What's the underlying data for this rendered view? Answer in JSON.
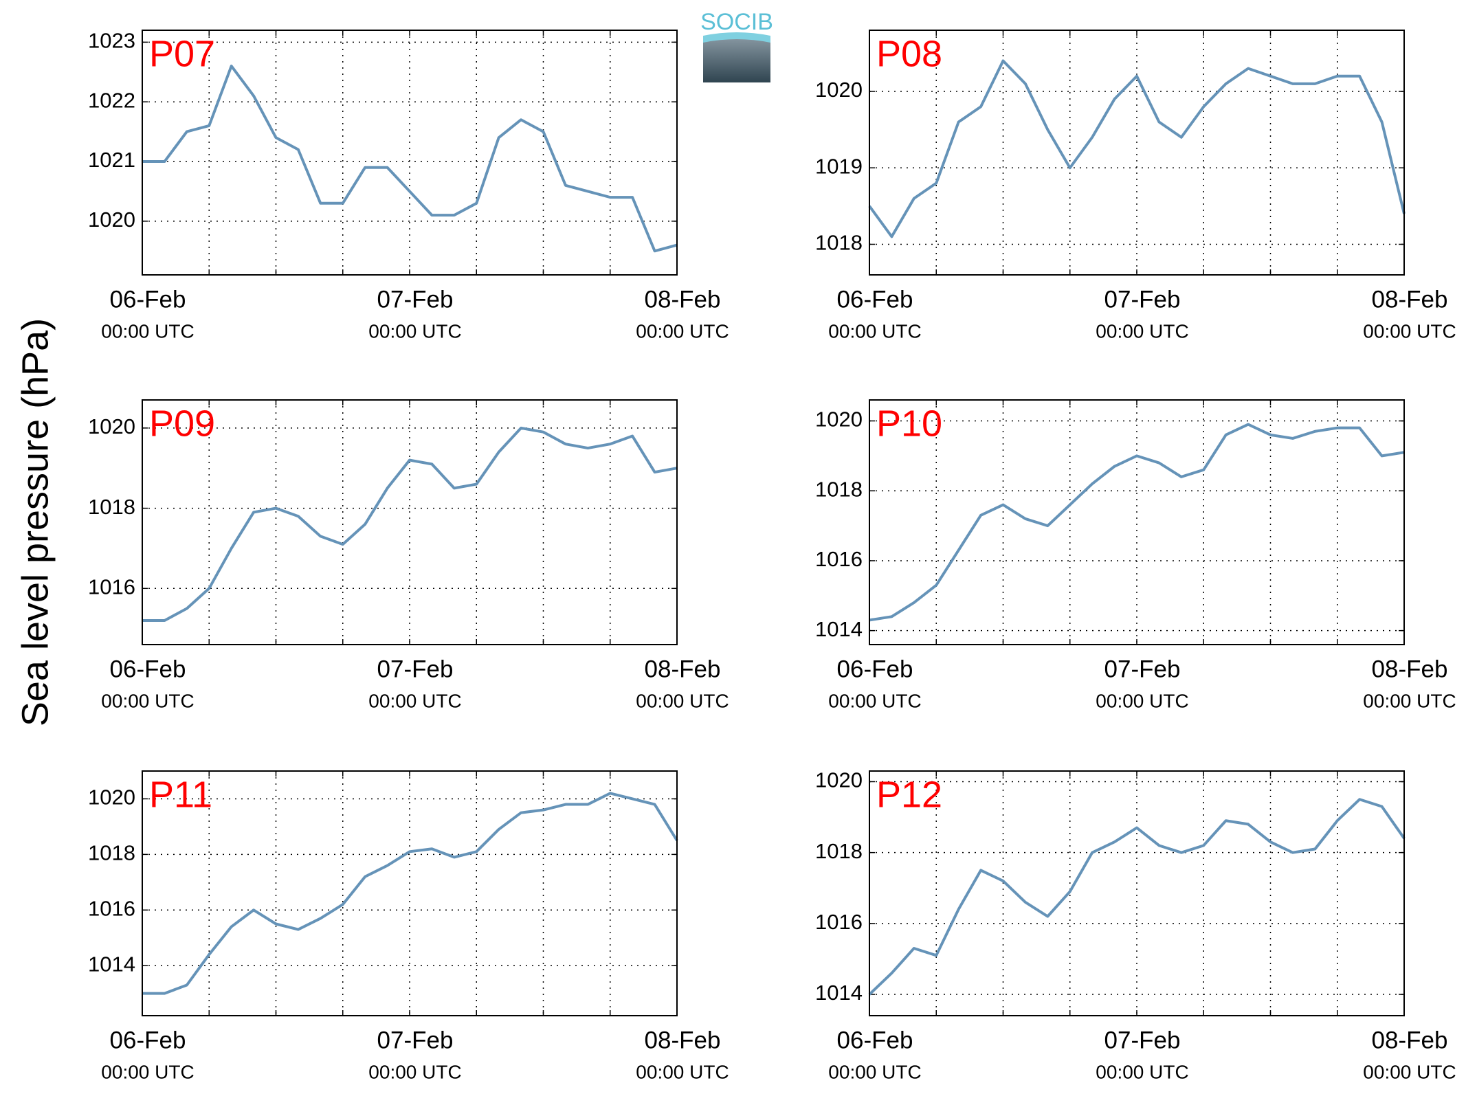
{
  "logo_text": "SOCIB",
  "ylabel": "Sea level pressure (hPa)",
  "chart_data": [
    {
      "type": "line",
      "title": "P07",
      "x": [
        0,
        2,
        4,
        6,
        8,
        10,
        12,
        14,
        16,
        18,
        20,
        22,
        24,
        26,
        28,
        30,
        32,
        34,
        36,
        38,
        40,
        42,
        44,
        46,
        48
      ],
      "series": [
        {
          "name": "P07",
          "color": "#6593b8",
          "values": [
            1021.0,
            1021.0,
            1021.5,
            1021.6,
            1022.6,
            1022.1,
            1021.4,
            1021.2,
            1020.3,
            1020.3,
            1020.9,
            1020.9,
            1020.5,
            1020.1,
            1020.1,
            1020.3,
            1021.4,
            1021.7,
            1021.5,
            1020.6,
            1020.5,
            1020.4,
            1020.4,
            1019.5,
            1019.6
          ]
        }
      ],
      "xlim": [
        0,
        48
      ],
      "xticks": [
        {
          "value": 0,
          "label": "06-Feb",
          "sublabel": "00:00 UTC"
        },
        {
          "value": 6,
          "label": null
        },
        {
          "value": 12,
          "label": null
        },
        {
          "value": 18,
          "label": null
        },
        {
          "value": 24,
          "label": "07-Feb",
          "sublabel": "00:00 UTC"
        },
        {
          "value": 30,
          "label": null
        },
        {
          "value": 36,
          "label": null
        },
        {
          "value": 42,
          "label": null
        },
        {
          "value": 48,
          "label": "08-Feb",
          "sublabel": "00:00 UTC"
        }
      ],
      "ylim": [
        1019.1,
        1023.2
      ],
      "yticks": [
        1020,
        1021,
        1022,
        1023
      ],
      "grid": true
    },
    {
      "type": "line",
      "title": "P08",
      "x": [
        0,
        2,
        4,
        6,
        8,
        10,
        12,
        14,
        16,
        18,
        20,
        22,
        24,
        26,
        28,
        30,
        32,
        34,
        36,
        38,
        40,
        42,
        44,
        46,
        48
      ],
      "series": [
        {
          "name": "P08",
          "color": "#6593b8",
          "values": [
            1018.5,
            1018.1,
            1018.6,
            1018.8,
            1019.6,
            1019.8,
            1020.4,
            1020.1,
            1019.5,
            1019.0,
            1019.4,
            1019.9,
            1020.2,
            1019.6,
            1019.4,
            1019.8,
            1020.1,
            1020.3,
            1020.2,
            1020.1,
            1020.1,
            1020.2,
            1020.2,
            1019.6,
            1018.4
          ]
        }
      ],
      "xlim": [
        0,
        48
      ],
      "xticks": [
        {
          "value": 0,
          "label": "06-Feb",
          "sublabel": "00:00 UTC"
        },
        {
          "value": 6,
          "label": null
        },
        {
          "value": 12,
          "label": null
        },
        {
          "value": 18,
          "label": null
        },
        {
          "value": 24,
          "label": "07-Feb",
          "sublabel": "00:00 UTC"
        },
        {
          "value": 30,
          "label": null
        },
        {
          "value": 36,
          "label": null
        },
        {
          "value": 42,
          "label": null
        },
        {
          "value": 48,
          "label": "08-Feb",
          "sublabel": "00:00 UTC"
        }
      ],
      "ylim": [
        1017.6,
        1020.8
      ],
      "yticks": [
        1018,
        1019,
        1020
      ],
      "grid": true
    },
    {
      "type": "line",
      "title": "P09",
      "x": [
        0,
        2,
        4,
        6,
        8,
        10,
        12,
        14,
        16,
        18,
        20,
        22,
        24,
        26,
        28,
        30,
        32,
        34,
        36,
        38,
        40,
        42,
        44,
        46,
        48
      ],
      "series": [
        {
          "name": "P09",
          "color": "#6593b8",
          "values": [
            1015.2,
            1015.2,
            1015.5,
            1016.0,
            1017.0,
            1017.9,
            1018.0,
            1017.8,
            1017.3,
            1017.1,
            1017.6,
            1018.5,
            1019.2,
            1019.1,
            1018.5,
            1018.6,
            1019.4,
            1020.0,
            1019.9,
            1019.6,
            1019.5,
            1019.6,
            1019.8,
            1018.9,
            1019.0
          ]
        }
      ],
      "xlim": [
        0,
        48
      ],
      "xticks": [
        {
          "value": 0,
          "label": "06-Feb",
          "sublabel": "00:00 UTC"
        },
        {
          "value": 6,
          "label": null
        },
        {
          "value": 12,
          "label": null
        },
        {
          "value": 18,
          "label": null
        },
        {
          "value": 24,
          "label": "07-Feb",
          "sublabel": "00:00 UTC"
        },
        {
          "value": 30,
          "label": null
        },
        {
          "value": 36,
          "label": null
        },
        {
          "value": 42,
          "label": null
        },
        {
          "value": 48,
          "label": "08-Feb",
          "sublabel": "00:00 UTC"
        }
      ],
      "ylim": [
        1014.6,
        1020.7
      ],
      "yticks": [
        1016,
        1018,
        1020
      ],
      "grid": true
    },
    {
      "type": "line",
      "title": "P10",
      "x": [
        0,
        2,
        4,
        6,
        8,
        10,
        12,
        14,
        16,
        18,
        20,
        22,
        24,
        26,
        28,
        30,
        32,
        34,
        36,
        38,
        40,
        42,
        44,
        46,
        48
      ],
      "series": [
        {
          "name": "P10",
          "color": "#6593b8",
          "values": [
            1014.3,
            1014.4,
            1014.8,
            1015.3,
            1016.3,
            1017.3,
            1017.6,
            1017.2,
            1017.0,
            1017.6,
            1018.2,
            1018.7,
            1019.0,
            1018.8,
            1018.4,
            1018.6,
            1019.6,
            1019.9,
            1019.6,
            1019.5,
            1019.7,
            1019.8,
            1019.8,
            1019.0,
            1019.1
          ]
        }
      ],
      "xlim": [
        0,
        48
      ],
      "xticks": [
        {
          "value": 0,
          "label": "06-Feb",
          "sublabel": "00:00 UTC"
        },
        {
          "value": 6,
          "label": null
        },
        {
          "value": 12,
          "label": null
        },
        {
          "value": 18,
          "label": null
        },
        {
          "value": 24,
          "label": "07-Feb",
          "sublabel": "00:00 UTC"
        },
        {
          "value": 30,
          "label": null
        },
        {
          "value": 36,
          "label": null
        },
        {
          "value": 42,
          "label": null
        },
        {
          "value": 48,
          "label": "08-Feb",
          "sublabel": "00:00 UTC"
        }
      ],
      "ylim": [
        1013.6,
        1020.6
      ],
      "yticks": [
        1014,
        1016,
        1018,
        1020
      ],
      "grid": true
    },
    {
      "type": "line",
      "title": "P11",
      "x": [
        0,
        2,
        4,
        6,
        8,
        10,
        12,
        14,
        16,
        18,
        20,
        22,
        24,
        26,
        28,
        30,
        32,
        34,
        36,
        38,
        40,
        42,
        44,
        46,
        48
      ],
      "series": [
        {
          "name": "P11",
          "color": "#6593b8",
          "values": [
            1013.0,
            1013.0,
            1013.3,
            1014.4,
            1015.4,
            1016.0,
            1015.5,
            1015.3,
            1015.7,
            1016.2,
            1017.2,
            1017.6,
            1018.1,
            1018.2,
            1017.9,
            1018.1,
            1018.9,
            1019.5,
            1019.6,
            1019.8,
            1019.8,
            1020.2,
            1020.0,
            1019.8,
            1018.5
          ]
        }
      ],
      "xlim": [
        0,
        48
      ],
      "xticks": [
        {
          "value": 0,
          "label": "06-Feb",
          "sublabel": "00:00 UTC"
        },
        {
          "value": 6,
          "label": null
        },
        {
          "value": 12,
          "label": null
        },
        {
          "value": 18,
          "label": null
        },
        {
          "value": 24,
          "label": "07-Feb",
          "sublabel": "00:00 UTC"
        },
        {
          "value": 30,
          "label": null
        },
        {
          "value": 36,
          "label": null
        },
        {
          "value": 42,
          "label": null
        },
        {
          "value": 48,
          "label": "08-Feb",
          "sublabel": "00:00 UTC"
        }
      ],
      "ylim": [
        1012.2,
        1021.0
      ],
      "yticks": [
        1014,
        1016,
        1018,
        1020
      ],
      "grid": true
    },
    {
      "type": "line",
      "title": "P12",
      "x": [
        0,
        2,
        4,
        6,
        8,
        10,
        12,
        14,
        16,
        18,
        20,
        22,
        24,
        26,
        28,
        30,
        32,
        34,
        36,
        38,
        40,
        42,
        44,
        46,
        48
      ],
      "series": [
        {
          "name": "P12",
          "color": "#6593b8",
          "values": [
            1014.0,
            1014.6,
            1015.3,
            1015.1,
            1016.4,
            1017.5,
            1017.2,
            1016.6,
            1016.2,
            1016.9,
            1018.0,
            1018.3,
            1018.7,
            1018.2,
            1018.0,
            1018.2,
            1018.9,
            1018.8,
            1018.3,
            1018.0,
            1018.1,
            1018.9,
            1019.5,
            1019.3,
            1018.4
          ]
        }
      ],
      "xlim": [
        0,
        48
      ],
      "xticks": [
        {
          "value": 0,
          "label": "06-Feb",
          "sublabel": "00:00 UTC"
        },
        {
          "value": 6,
          "label": null
        },
        {
          "value": 12,
          "label": null
        },
        {
          "value": 18,
          "label": null
        },
        {
          "value": 24,
          "label": "07-Feb",
          "sublabel": "00:00 UTC"
        },
        {
          "value": 30,
          "label": null
        },
        {
          "value": 36,
          "label": null
        },
        {
          "value": 42,
          "label": null
        },
        {
          "value": 48,
          "label": "08-Feb",
          "sublabel": "00:00 UTC"
        }
      ],
      "ylim": [
        1013.4,
        1020.3
      ],
      "yticks": [
        1014,
        1016,
        1018,
        1020
      ],
      "grid": true
    }
  ]
}
